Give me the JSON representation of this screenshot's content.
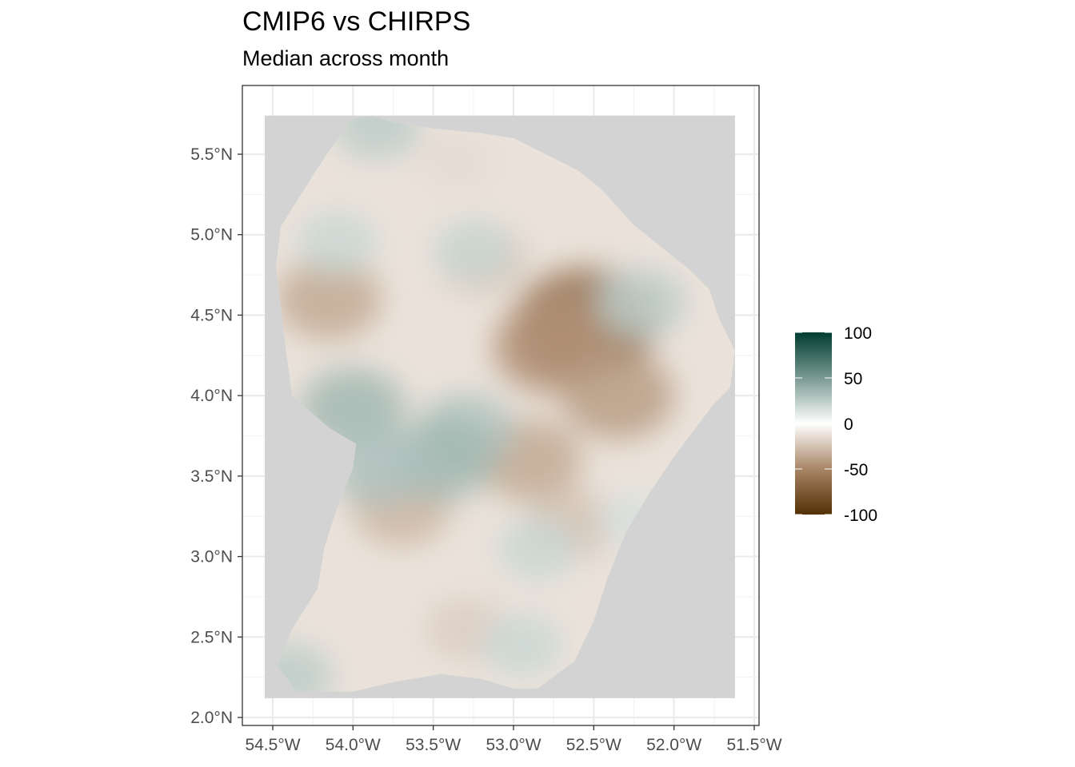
{
  "chart_data": {
    "type": "heatmap",
    "title": "CMIP6 vs CHIRPS",
    "subtitle": "Median across month",
    "xlabel": "",
    "ylabel": "",
    "xlim": [
      -54.5,
      -51.5
    ],
    "ylim": [
      2.0,
      5.5
    ],
    "x_ticks": [
      {
        "value": -54.5,
        "label": "54.5°W"
      },
      {
        "value": -54.0,
        "label": "54.0°W"
      },
      {
        "value": -53.5,
        "label": "53.5°W"
      },
      {
        "value": -53.0,
        "label": "53.0°W"
      },
      {
        "value": -52.5,
        "label": "52.5°W"
      },
      {
        "value": -52.0,
        "label": "52.0°W"
      },
      {
        "value": -51.5,
        "label": "51.5°W"
      }
    ],
    "y_ticks": [
      {
        "value": 2.0,
        "label": "2.0°N"
      },
      {
        "value": 2.5,
        "label": "2.5°N"
      },
      {
        "value": 3.0,
        "label": "3.0°N"
      },
      {
        "value": 3.5,
        "label": "3.5°N"
      },
      {
        "value": 4.0,
        "label": "4.0°N"
      },
      {
        "value": 4.5,
        "label": "4.5°N"
      },
      {
        "value": 5.0,
        "label": "5.0°N"
      },
      {
        "value": 5.5,
        "label": "5.5°N"
      }
    ],
    "raster_extent": {
      "lon": [
        -54.55,
        -51.62
      ],
      "lat": [
        2.12,
        5.74
      ]
    },
    "colorbar": {
      "range": [
        -100,
        100
      ],
      "ticks": [
        {
          "value": 100,
          "label": "100"
        },
        {
          "value": 50,
          "label": "50"
        },
        {
          "value": 0,
          "label": "0"
        },
        {
          "value": -50,
          "label": "-50"
        },
        {
          "value": -100,
          "label": "-100"
        }
      ],
      "stops": [
        {
          "value": -100,
          "color": "#543005"
        },
        {
          "value": -50,
          "color": "#a88566"
        },
        {
          "value": 0,
          "color": "#ffffff"
        },
        {
          "value": 50,
          "color": "#7a9a92"
        },
        {
          "value": 100,
          "color": "#003c30"
        }
      ]
    },
    "panel_bg": "#ffffff",
    "na_color": "#d3d3d3",
    "grid": true,
    "legend_position": "right",
    "outline": [
      [
        -54.02,
        5.72
      ],
      [
        -53.88,
        5.74
      ],
      [
        -53.75,
        5.7
      ],
      [
        -53.5,
        5.66
      ],
      [
        -53.2,
        5.63
      ],
      [
        -53.0,
        5.6
      ],
      [
        -52.8,
        5.5
      ],
      [
        -52.6,
        5.4
      ],
      [
        -52.45,
        5.28
      ],
      [
        -52.25,
        5.06
      ],
      [
        -52.05,
        4.9
      ],
      [
        -51.9,
        4.78
      ],
      [
        -51.78,
        4.66
      ],
      [
        -51.72,
        4.48
      ],
      [
        -51.62,
        4.28
      ],
      [
        -51.65,
        4.05
      ],
      [
        -51.75,
        3.95
      ],
      [
        -51.88,
        3.78
      ],
      [
        -52.0,
        3.62
      ],
      [
        -52.15,
        3.4
      ],
      [
        -52.3,
        3.15
      ],
      [
        -52.42,
        2.85
      ],
      [
        -52.5,
        2.6
      ],
      [
        -52.62,
        2.35
      ],
      [
        -52.85,
        2.18
      ],
      [
        -53.0,
        2.18
      ],
      [
        -53.2,
        2.24
      ],
      [
        -53.45,
        2.27
      ],
      [
        -53.75,
        2.22
      ],
      [
        -54.0,
        2.16
      ],
      [
        -54.35,
        2.16
      ],
      [
        -54.47,
        2.32
      ],
      [
        -54.38,
        2.55
      ],
      [
        -54.22,
        2.8
      ],
      [
        -54.18,
        3.05
      ],
      [
        -54.1,
        3.3
      ],
      [
        -54.0,
        3.55
      ],
      [
        -53.98,
        3.7
      ],
      [
        -54.15,
        3.8
      ],
      [
        -54.38,
        4.0
      ],
      [
        -54.42,
        4.3
      ],
      [
        -54.45,
        4.55
      ],
      [
        -54.48,
        4.8
      ],
      [
        -54.45,
        5.05
      ],
      [
        -54.28,
        5.32
      ],
      [
        -54.15,
        5.52
      ],
      [
        -54.05,
        5.65
      ]
    ],
    "anomaly_blobs": [
      {
        "lon": -52.55,
        "lat": 4.45,
        "value": -60
      },
      {
        "lon": -52.75,
        "lat": 4.3,
        "value": -45
      },
      {
        "lon": -52.35,
        "lat": 4.0,
        "value": -40
      },
      {
        "lon": -54.15,
        "lat": 4.6,
        "value": -35
      },
      {
        "lon": -53.7,
        "lat": 3.3,
        "value": -30
      },
      {
        "lon": -52.9,
        "lat": 3.6,
        "value": -35
      },
      {
        "lon": -52.65,
        "lat": 3.2,
        "value": -25
      },
      {
        "lon": -53.3,
        "lat": 2.55,
        "value": -20
      },
      {
        "lon": -53.2,
        "lat": 4.85,
        "value": -25
      },
      {
        "lon": -53.35,
        "lat": 5.45,
        "value": -15
      },
      {
        "lon": -54.0,
        "lat": 3.92,
        "value": 35
      },
      {
        "lon": -53.3,
        "lat": 3.78,
        "value": 30
      },
      {
        "lon": -53.45,
        "lat": 3.6,
        "value": 35
      },
      {
        "lon": -53.85,
        "lat": 3.55,
        "value": 30
      },
      {
        "lon": -53.25,
        "lat": 4.9,
        "value": 20
      },
      {
        "lon": -52.2,
        "lat": 4.58,
        "value": 25
      },
      {
        "lon": -54.1,
        "lat": 4.95,
        "value": 20
      },
      {
        "lon": -54.4,
        "lat": 2.25,
        "value": 25
      },
      {
        "lon": -53.85,
        "lat": 5.68,
        "value": 25
      },
      {
        "lon": -52.95,
        "lat": 2.45,
        "value": 20
      },
      {
        "lon": -52.85,
        "lat": 3.05,
        "value": 20
      },
      {
        "lon": -52.25,
        "lat": 3.22,
        "value": 15
      }
    ]
  }
}
